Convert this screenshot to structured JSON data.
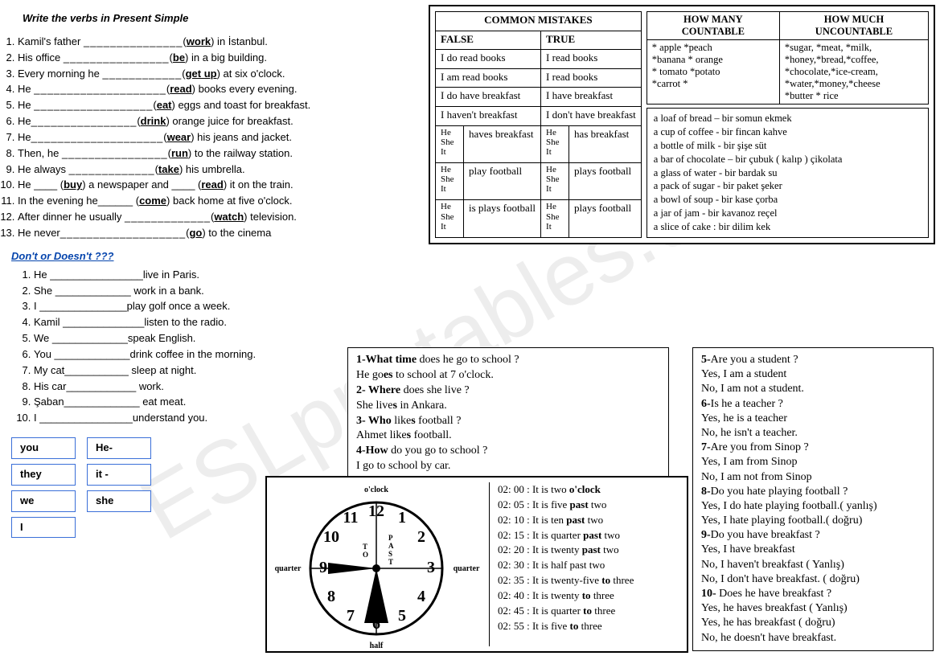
{
  "title": "Write the verbs in Present Simple",
  "ex1": [
    {
      "pre": "Kamil's father ",
      "verb": "work",
      "post": ") in İstanbul.",
      "blank": "_______________"
    },
    {
      "pre": "His office ",
      "verb": "be",
      "post": ") in a big building.",
      "blank": "________________"
    },
    {
      "pre": "Every morning he ",
      "verb": "get up",
      "post": ") at six o'clock.",
      "blank": "____________"
    },
    {
      "pre": "He ",
      "verb": "read",
      "post": ") books every evening.",
      "blank": "____________________"
    },
    {
      "pre": "He ",
      "verb": "eat",
      "post": ") eggs and toast for breakfast.",
      "blank": "__________________"
    },
    {
      "pre": "He",
      "verb": "drink",
      "post": ") orange juice for breakfast.",
      "blank": "________________"
    },
    {
      "pre": "He",
      "verb": "wear",
      "post": ") his jeans and jacket.",
      "blank": "____________________"
    },
    {
      "pre": "Then, he ",
      "verb": "run",
      "post": ") to the railway station.",
      "blank": "________________"
    },
    {
      "pre": "He always ",
      "verb": "take",
      "post": ") his umbrella.",
      "blank": "_____________"
    },
    {
      "pre": "He ____ (",
      "verb": "buy",
      "mid": ") a newspaper and ____ (",
      "verb2": "read",
      "post": ") it on the train.",
      "blank": ""
    },
    {
      "pre": "In the evening he______ (",
      "verb": "come",
      "post": ") back home at five o'clock.",
      "blank": ""
    },
    {
      "pre": "After dinner he usually ",
      "verb": "watch",
      "post": ") television.",
      "blank": "_____________"
    },
    {
      "pre": " He never",
      "verb": "go",
      "post": ") to the cinema",
      "blank": "___________________"
    }
  ],
  "subheading": "Don't or Doesn't ???",
  "ex2": [
    "He ________________live in Paris.",
    "She _____________ work in a bank.",
    "I    _______________play golf once a week.",
    "Kamil ______________listen to the radio.",
    "We _____________speak English.",
    "You _____________drink coffee in the morning.",
    "My cat___________ sleep at night.",
    "His car____________ work.",
    "Şaban_____________ eat meat.",
    "I    ________________understand you."
  ],
  "pronouns": {
    "col1": [
      "you",
      "they",
      "we",
      "I"
    ],
    "col2": [
      "He-",
      "it -",
      "she"
    ]
  },
  "mistakes": {
    "title": "COMMON MISTAKES",
    "h1": "FALSE",
    "h2": "TRUE",
    "rows": [
      [
        "I do read books",
        "I read books"
      ],
      [
        "I am read books",
        "I read books"
      ],
      [
        "I do have breakfast",
        "I have breakfast"
      ],
      [
        "I haven't breakfast",
        "I don't have breakfast"
      ]
    ],
    "prows": [
      {
        "subj": "He She It",
        "false": "haves breakfast",
        "true": "has breakfast"
      },
      {
        "subj": "He She It",
        "false": "play football",
        "true": "plays football"
      },
      {
        "subj": "He She It",
        "false": "is plays football",
        "true": "plays football"
      }
    ]
  },
  "countable": {
    "h1": "HOW MANY COUNTABLE",
    "h2": "HOW MUCH UNCOUNTABLE",
    "c1": "* apple  *peach\n*banana * orange\n* tomato *potato\n*carrot  *",
    "c2": "*sugar, *meat, *milk,\n*honey,*bread,*coffee,\n*chocolate,*ice-cream,\n*water,*money,*cheese\n*butter * rice"
  },
  "phrases": [
    "a loaf of bread – bir somun ekmek",
    "a cup of coffee - bir fincan kahve",
    "a bottle of milk  - bir şişe süt",
    "a bar of chocolate – bir çubuk ( kalıp ) çikolata",
    "a glass of water  - bir bardak su",
    "a pack of sugar  - bir paket şeker",
    "a bowl of soup    - bir kase çorba",
    "a jar of jam       - bir kavanoz reçel",
    "a slice of cake :  bir dilim kek"
  ],
  "qa1": [
    {
      "t": "html",
      "v": "<span class='b'>1-What time</span> does he go to school ?"
    },
    {
      "t": "html",
      "v": "He go<span class='b'>es</span> to school at 7 o'clock."
    },
    {
      "t": "html",
      "v": "<span class='b'>2- Where</span> does she live ?"
    },
    {
      "t": "html",
      "v": "She live<span class='b'>s</span> in Ankara."
    },
    {
      "t": "html",
      "v": "<span class='b'>3- Who</span> like<span class='b'>s</span>  football ?"
    },
    {
      "t": "html",
      "v": "Ahmet like<span class='b'>s</span> football."
    },
    {
      "t": "html",
      "v": "<span class='b'>4-How</span> do you go to school ?"
    },
    {
      "t": "txt",
      "v": "I go to school by car."
    }
  ],
  "qa2": [
    {
      "b": "5-",
      "t": "Are you a student ?"
    },
    {
      "b": "",
      "t": "Yes, I am a student"
    },
    {
      "b": "",
      "t": " No, I am not a student."
    },
    {
      "b": "6-",
      "t": "Is he a teacher ?"
    },
    {
      "b": "",
      "t": "Yes, he is a teacher"
    },
    {
      "b": "",
      "t": " No, he isn't a teacher."
    },
    {
      "b": "7-",
      "t": "Are you from Sinop ?"
    },
    {
      "b": "",
      "t": "Yes, I am from Sinop"
    },
    {
      "b": "",
      "t": "No, I am not from Sinop"
    },
    {
      "b": "8-",
      "t": "Do you hate playing football ?"
    },
    {
      "b": "",
      "t": "Yes, I do hate playing football.( yanlış)"
    },
    {
      "b": "",
      "t": "Yes, I hate playing football.( doğru)"
    },
    {
      "b": "9-",
      "t": "Do you have breakfast ?"
    },
    {
      "b": "",
      "t": "Yes, I have breakfast"
    },
    {
      "b": "",
      "t": "No, I haven't breakfast  ( Yanlış)"
    },
    {
      "b": "",
      "t": "No, I don't have breakfast. ( doğru)"
    },
    {
      "b": "10-",
      "t": " Does he have breakfast ?"
    },
    {
      "b": "",
      "t": "Yes, he haves breakfast ( Yanlış)"
    },
    {
      "b": "",
      "t": "Yes, he has breakfast     ( doğru)"
    },
    {
      "b": "",
      "t": "No, he doesn't have breakfast."
    }
  ],
  "clock_labels": {
    "top": "o'clock",
    "left": "quarter",
    "right": "quarter",
    "bottom": "half",
    "to": "T\nO",
    "past": "P\nA\nS\nT"
  },
  "times": [
    "02: 00 : It is two <b>o'clock</b>",
    "02: 05 : It is five <b>past</b> two",
    "02: 10 : It is ten <b>past</b> two",
    "02: 15 : It is quarter <b>past</b> two",
    "02: 20 : It is twenty <b>past</b> two",
    "02: 30 : It is half past two",
    "02: 35 :  It is twenty-five <b>to</b> three",
    "02: 40 : It is twenty <b>to</b> three",
    "02: 45 : It is quarter <b>to</b> three",
    "02: 55 : It is five <b>to</b> three"
  ],
  "watermark": "ESLprintables.com"
}
